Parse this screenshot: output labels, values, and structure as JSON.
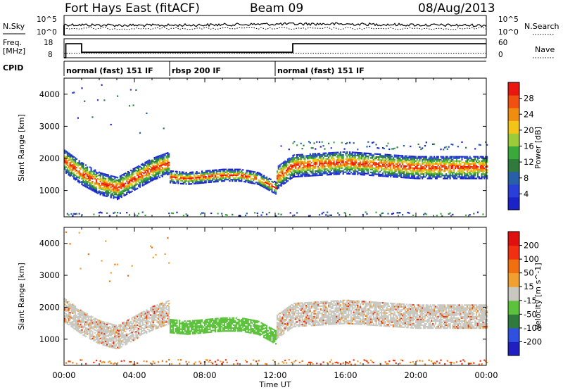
{
  "header": {
    "station": "Fort Hays East (fitACF)",
    "beam": "Beam 09",
    "date": "08/Aug/2013"
  },
  "noise_panel": {
    "left_label": "N.Sky",
    "right_label": "N.Search",
    "left_ticks": [
      "10^5",
      "10^0"
    ],
    "right_ticks": [
      "10^5",
      "10^0"
    ]
  },
  "freq_panel": {
    "left_label_line1": "Freq.",
    "left_label_line2": "[MHz]",
    "right_label": "Nave",
    "left_ticks": [
      "18",
      "8"
    ],
    "right_ticks": [
      "60",
      "0"
    ],
    "freq_steps": [
      {
        "t": 0.0,
        "mhz": 8
      },
      {
        "t": 0.1,
        "mhz": 16.3
      },
      {
        "t": 1.0,
        "mhz": 11.2
      },
      {
        "t": 13.0,
        "mhz": 16.3
      },
      {
        "t": 24.0,
        "mhz": 16.3
      }
    ],
    "nave_level": 16
  },
  "cpid": {
    "label": "CPID",
    "segments": [
      {
        "start": 0,
        "end": 6,
        "name": "normal (fast) 151 IF"
      },
      {
        "start": 6,
        "end": 12,
        "name": "rbsp 200 IF"
      },
      {
        "start": 12,
        "end": 24,
        "name": "normal (fast) 151 IF"
      }
    ]
  },
  "chart_data": [
    {
      "type": "heatmap",
      "title": "Power",
      "ylabel": "Slant Range [km]",
      "xlabel": "",
      "ylim": [
        180,
        4500
      ],
      "xlim": [
        0,
        24
      ],
      "yticks": [
        "1000",
        "2000",
        "3000",
        "4000"
      ],
      "colorbar": {
        "label": "Power [dB]",
        "ticks": [
          "4",
          "8",
          "12",
          "16",
          "20",
          "24",
          "28"
        ],
        "colors": [
          "#1a22c8",
          "#2a3fd8",
          "#2860a8",
          "#2f7a3c",
          "#3aa93a",
          "#9ccb3a",
          "#f2c418",
          "#f08c10",
          "#f05010",
          "#e81810"
        ]
      },
      "bands": [
        {
          "name": "main",
          "points": [
            [
              0,
              1950
            ],
            [
              1,
              1550
            ],
            [
              2,
              1250
            ],
            [
              3,
              1100
            ],
            [
              4,
              1400
            ],
            [
              5,
              1700
            ],
            [
              6,
              1900
            ]
          ]
        },
        {
          "name": "rbsp",
          "points": [
            [
              6,
              1450
            ],
            [
              7,
              1400
            ],
            [
              8,
              1450
            ],
            [
              9,
              1500
            ],
            [
              10,
              1500
            ],
            [
              11,
              1400
            ],
            [
              12,
              1100
            ]
          ]
        },
        {
          "name": "post",
          "points": [
            [
              12,
              1400
            ],
            [
              13,
              1800
            ],
            [
              16,
              1900
            ],
            [
              20,
              1750
            ],
            [
              24,
              1750
            ]
          ]
        }
      ]
    },
    {
      "type": "heatmap",
      "title": "Velocity",
      "ylabel": "Slant Range [km]",
      "xlabel": "Time UT",
      "ylim": [
        180,
        4500
      ],
      "xlim": [
        0,
        24
      ],
      "yticks": [
        "1000",
        "2000",
        "3000",
        "4000"
      ],
      "xticks": [
        "00:00",
        "04:00",
        "08:00",
        "12:00",
        "16:00",
        "20:00",
        "00:00"
      ],
      "colorbar": {
        "label": "Velocity [m s^-1]",
        "ticks": [
          "200",
          "100",
          "50",
          "15",
          "-15",
          "-50",
          "-100",
          "-200"
        ],
        "colors": [
          "#2020c0",
          "#3050e0",
          "#2f7a3c",
          "#5cc23c",
          "#c8c8c0",
          "#f0a030",
          "#f07010",
          "#f03010",
          "#e01010"
        ]
      }
    }
  ]
}
